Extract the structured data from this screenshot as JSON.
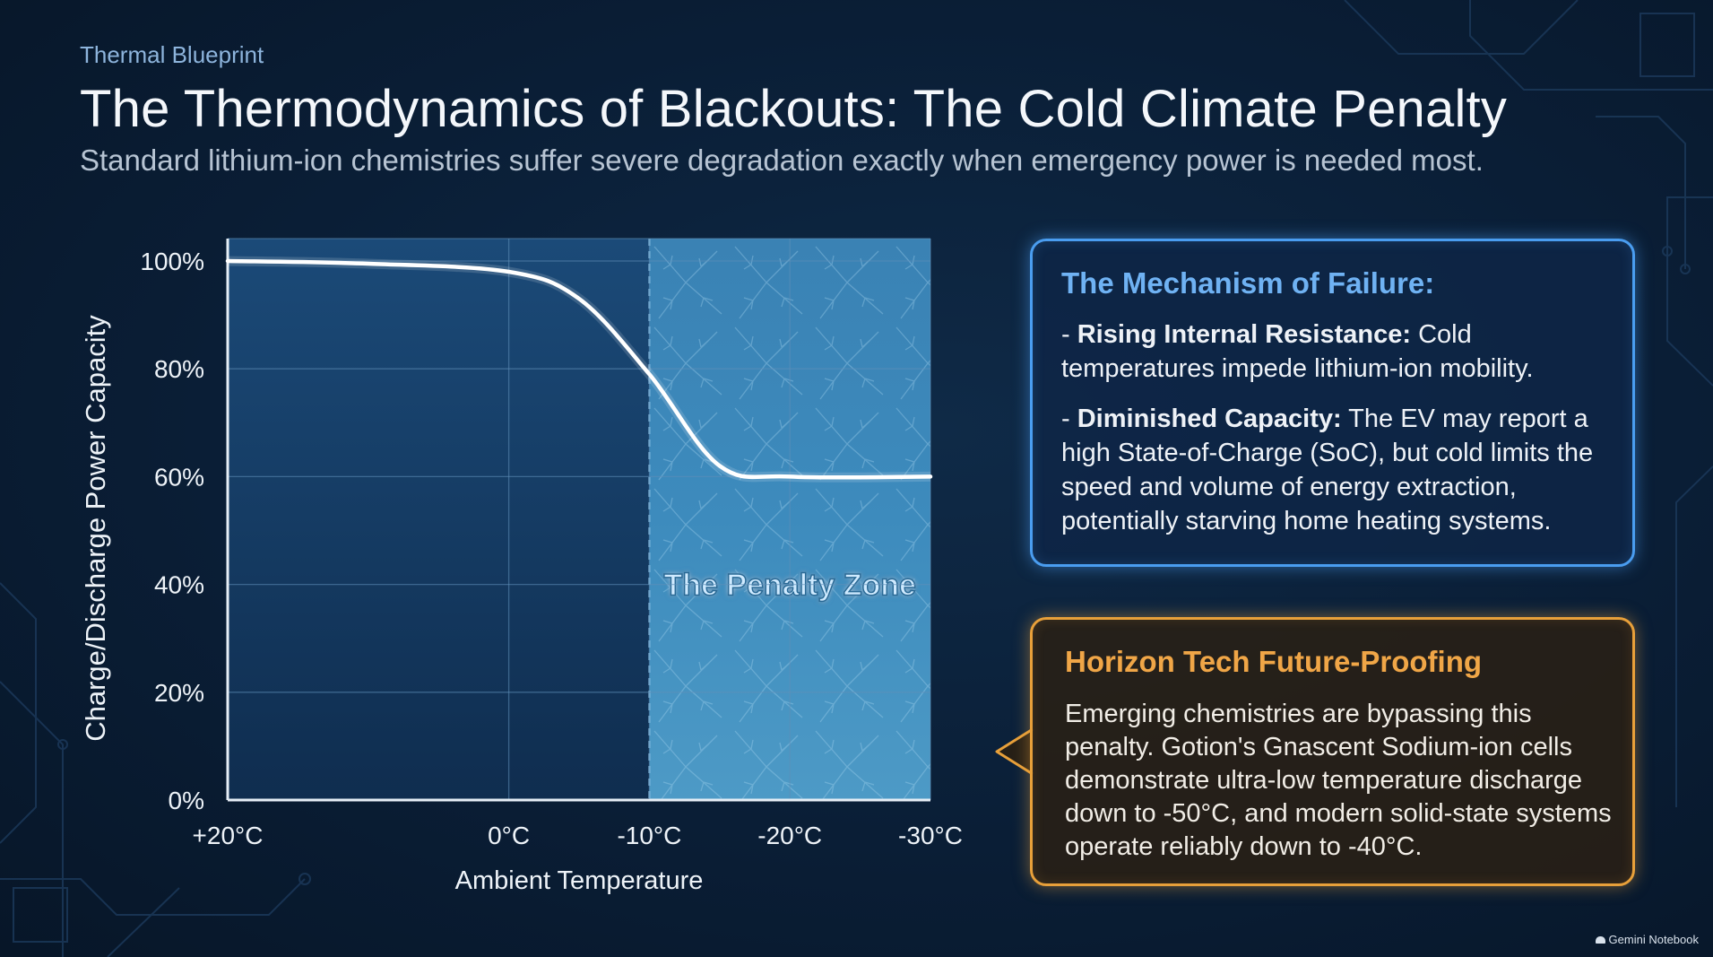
{
  "header": {
    "eyebrow": "Thermal Blueprint",
    "title": "The Thermodynamics of Blackouts: The Cold Climate Penalty",
    "subtitle": "Standard lithium-ion chemistries suffer severe degradation exactly when emergency power is needed most."
  },
  "chart_data": {
    "type": "line",
    "xlabel": "Ambient Temperature",
    "ylabel": "Charge/Discharge Power Capacity",
    "x_ticks": [
      "+20°C",
      "0°C",
      "-10°C",
      "-20°C",
      "-30°C"
    ],
    "y_ticks": [
      "0%",
      "20%",
      "40%",
      "60%",
      "80%",
      "100%"
    ],
    "ylim": [
      0,
      100
    ],
    "grid": true,
    "series": [
      {
        "color": "#ffffff",
        "points": [
          {
            "x": "+20°C",
            "y": 100
          },
          {
            "x": "10°C",
            "y": 99.5
          },
          {
            "x": "0°C",
            "y": 98
          },
          {
            "x": "-5°C",
            "y": 93
          },
          {
            "x": "-10°C",
            "y": 79
          },
          {
            "x": "-15°C",
            "y": 62
          },
          {
            "x": "-20°C",
            "y": 60
          },
          {
            "x": "-30°C",
            "y": 60
          }
        ]
      }
    ],
    "zone": {
      "label": "The Penalty Zone",
      "from": "-10°C",
      "to": "-30°C"
    }
  },
  "mechanism_panel": {
    "title": "The Mechanism of Failure:",
    "items": [
      {
        "dash": "-",
        "bold": "Rising Internal Resistance:",
        "text": " Cold temperatures impede lithium-ion mobility."
      },
      {
        "dash": "-",
        "bold": "Diminished Capacity:",
        "text": " The EV may report a high State-of-Charge (SoC), but cold limits the speed and volume of energy extraction, potentially starving home heating systems."
      }
    ]
  },
  "future_panel": {
    "title": "Horizon Tech Future-Proofing",
    "text": "Emerging chemistries are bypassing this penalty. Gotion's Gnascent Sodium-ion cells demonstrate ultra-low temperature discharge down to -50°C, and modern solid-state systems operate reliably down to -40°C."
  },
  "branding": {
    "label": "Gemini Notebook"
  },
  "colors": {
    "blue_accent": "#4a9df0",
    "orange_accent": "#e8a03a",
    "background": "#0a1e36",
    "frost": "#3d88b8"
  }
}
